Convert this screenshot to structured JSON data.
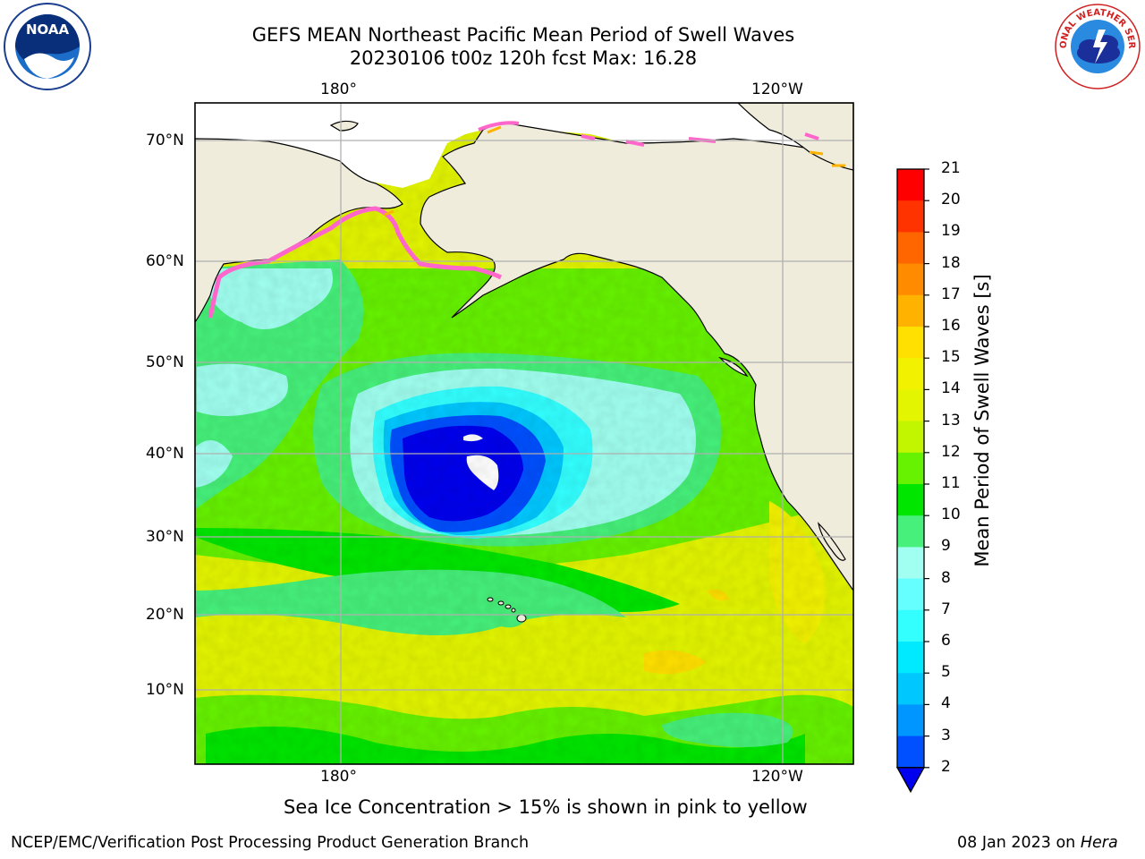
{
  "title": {
    "line1": "GEFS MEAN Northeast Pacific Mean Period of Swell Waves",
    "line2": "20230106 t00z 120h fcst   Max: 16.28"
  },
  "logos": {
    "noaa": {
      "icon": "noaa-logo",
      "text": "NOAA"
    },
    "nws": {
      "icon": "nws-logo",
      "text": "NATIONAL WEATHER SERVICE"
    }
  },
  "map": {
    "lon_labels_top": [
      "180°",
      "120°W"
    ],
    "lon_labels_bottom": [
      "180°",
      "120°W"
    ],
    "lat_labels": [
      "70°N",
      "60°N",
      "50°N",
      "40°N",
      "30°N",
      "20°N",
      "10°N"
    ],
    "land_color": "#efecdc",
    "grid_color": "#b0b0b0"
  },
  "colorbar": {
    "label": "Mean Period of Swell Waves [s]",
    "ticks": [
      "21",
      "20",
      "19",
      "18",
      "17",
      "16",
      "15",
      "14",
      "13",
      "12",
      "11",
      "10",
      "9",
      "8",
      "7",
      "6",
      "5",
      "4",
      "3",
      "2"
    ],
    "bins": [
      {
        "from": 20,
        "to": 21,
        "color": "#ff0000"
      },
      {
        "from": 19,
        "to": 20,
        "color": "#ff3300"
      },
      {
        "from": 18,
        "to": 19,
        "color": "#ff6600"
      },
      {
        "from": 17,
        "to": 18,
        "color": "#ff8c00"
      },
      {
        "from": 16,
        "to": 17,
        "color": "#ffb300"
      },
      {
        "from": 15,
        "to": 16,
        "color": "#ffe000"
      },
      {
        "from": 14,
        "to": 15,
        "color": "#f2f200"
      },
      {
        "from": 13,
        "to": 14,
        "color": "#e3f500"
      },
      {
        "from": 12,
        "to": 13,
        "color": "#c2f500"
      },
      {
        "from": 11,
        "to": 12,
        "color": "#66f200"
      },
      {
        "from": 10,
        "to": 11,
        "color": "#00e600"
      },
      {
        "from": 9,
        "to": 10,
        "color": "#46f07a"
      },
      {
        "from": 8,
        "to": 9,
        "color": "#a0fff0"
      },
      {
        "from": 7,
        "to": 8,
        "color": "#66ffff"
      },
      {
        "from": 6,
        "to": 7,
        "color": "#33ffff"
      },
      {
        "from": 5,
        "to": 6,
        "color": "#00eaff"
      },
      {
        "from": 4,
        "to": 5,
        "color": "#00c8ff"
      },
      {
        "from": 3,
        "to": 4,
        "color": "#0096ff"
      },
      {
        "from": 2,
        "to": 3,
        "color": "#0050ff"
      }
    ],
    "extend_below_color": "#0000ee"
  },
  "notes": {
    "sea_ice": "Sea Ice Concentration > 15% is shown in pink to yellow"
  },
  "footer": {
    "left": "NCEP/EMC/Verification Post Processing Product Generation Branch",
    "right_prefix": "08 Jan 2023 on ",
    "right_machine": "Hera"
  }
}
